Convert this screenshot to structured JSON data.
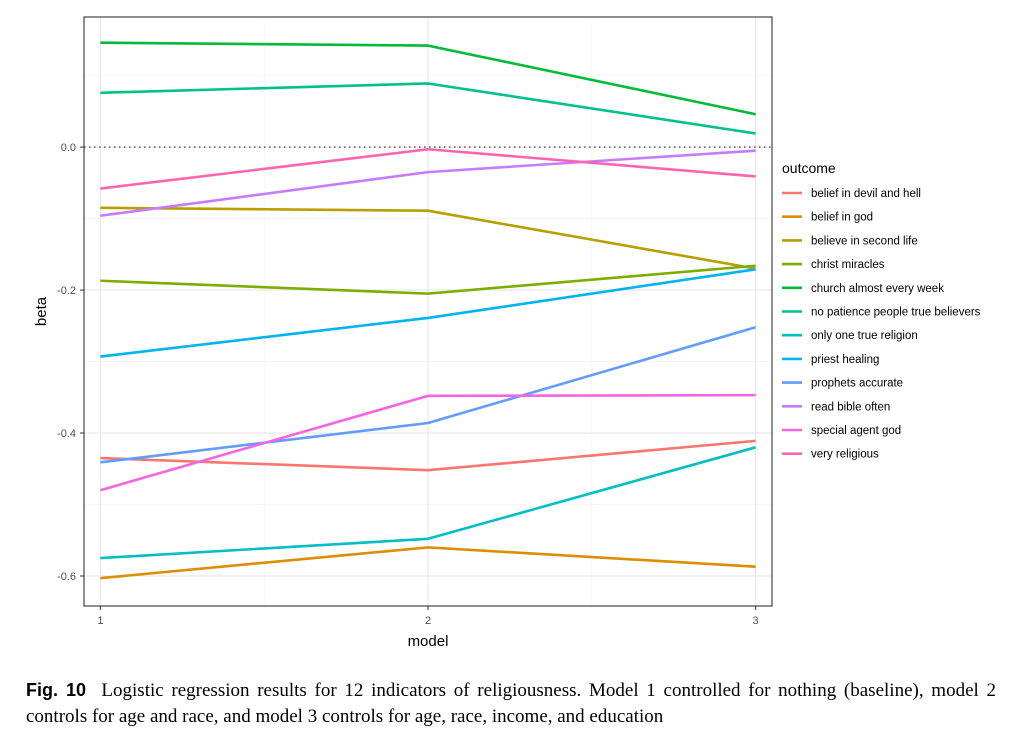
{
  "chart_data": {
    "type": "line",
    "xlabel": "model",
    "ylabel": "beta",
    "x": [
      1,
      2,
      3
    ],
    "x_ticks": [
      "1",
      "2",
      "3"
    ],
    "y_ticks": [
      {
        "value": 0.0,
        "label": "0.0"
      },
      {
        "value": -0.2,
        "label": "-0.2"
      },
      {
        "value": -0.4,
        "label": "-0.4"
      },
      {
        "value": -0.6,
        "label": "-0.6"
      }
    ],
    "xlim": [
      0.95,
      3.05
    ],
    "ylim": [
      -0.642,
      0.182
    ],
    "grid": true,
    "reference_line": 0.0,
    "legend_title": "outcome",
    "legend_position": "right",
    "series": [
      {
        "name": "belief in devil and hell",
        "color": "#F8766D",
        "values": [
          -0.435,
          -0.452,
          -0.411
        ]
      },
      {
        "name": "belief in god",
        "color": "#DE8C00",
        "values": [
          -0.603,
          -0.56,
          -0.587
        ]
      },
      {
        "name": "believe in second life",
        "color": "#B79F00",
        "values": [
          -0.085,
          -0.089,
          -0.17
        ]
      },
      {
        "name": "christ miracles",
        "color": "#7CAE00",
        "values": [
          -0.187,
          -0.205,
          -0.166
        ]
      },
      {
        "name": "church almost every week",
        "color": "#00BA38",
        "values": [
          0.146,
          0.142,
          0.046
        ]
      },
      {
        "name": "no patience people true believers",
        "color": "#00C08B",
        "values": [
          0.076,
          0.089,
          0.019
        ]
      },
      {
        "name": "only one true religion",
        "color": "#00BFC4",
        "values": [
          -0.575,
          -0.548,
          -0.42
        ]
      },
      {
        "name": "priest healing",
        "color": "#00B4F0",
        "values": [
          -0.293,
          -0.239,
          -0.171
        ]
      },
      {
        "name": "prophets accurate",
        "color": "#619CFF",
        "values": [
          -0.441,
          -0.386,
          -0.252
        ]
      },
      {
        "name": "read bible often",
        "color": "#C77CFF",
        "values": [
          -0.096,
          -0.035,
          -0.005
        ]
      },
      {
        "name": "special agent god",
        "color": "#F564E3",
        "values": [
          -0.48,
          -0.348,
          -0.347
        ]
      },
      {
        "name": "very religious",
        "color": "#FF64B0",
        "values": [
          -0.058,
          -0.003,
          -0.041
        ]
      }
    ]
  },
  "caption": {
    "label": "Fig. 10",
    "text": "Logistic regression results for 12 indicators of religiousness. Model 1 controlled for nothing (baseline), model 2 controls for age and race, and model 3 controls for age, race, income, and education"
  }
}
